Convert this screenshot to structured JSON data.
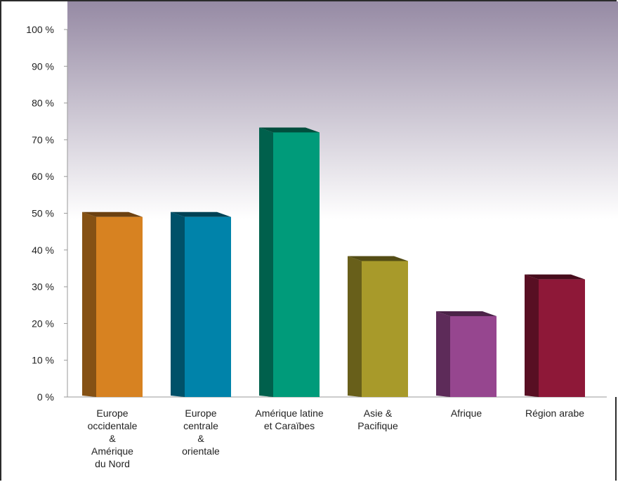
{
  "chart_data": {
    "type": "bar",
    "categories": [
      [
        "Europe",
        "occidentale",
        "&",
        "Amérique",
        "du Nord"
      ],
      [
        "Europe",
        "centrale",
        "&",
        "orientale"
      ],
      [
        "Amérique latine",
        "et Caraïbes"
      ],
      [
        "Asie &",
        "Pacifique"
      ],
      [
        "Afrique"
      ],
      [
        "Région arabe"
      ]
    ],
    "values": [
      49,
      49,
      72,
      37,
      22,
      32
    ],
    "colors": [
      "#d78221",
      "#0083aa",
      "#009b7a",
      "#a89a2a",
      "#96468f",
      "#8e1838"
    ],
    "ylim": [
      0,
      100
    ],
    "yticks": [
      "0 %",
      "10 %",
      "20 %",
      "30 %",
      "40 %",
      "50 %",
      "60 %",
      "70 %",
      "80 %",
      "90 %",
      "100 %"
    ],
    "grid": false,
    "background_gradient": [
      "#968aa4",
      "#ffffff"
    ]
  }
}
